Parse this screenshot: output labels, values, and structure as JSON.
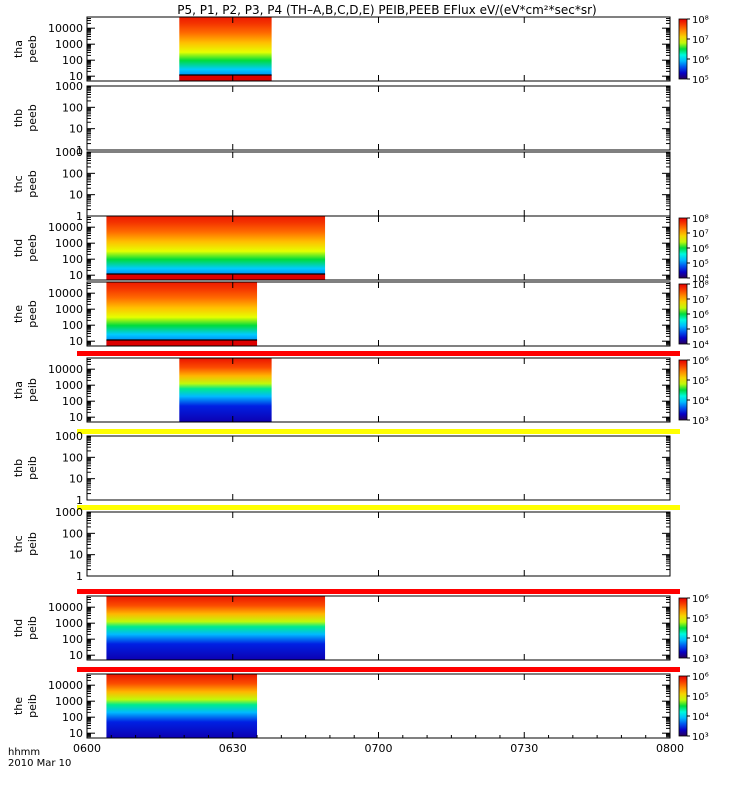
{
  "chart_data": {
    "type": "heatmap",
    "title": "P5, P1, P2, P3, P4 (TH–A,B,C,D,E) PEIB,PEEB EFlux eV/(eV*cm²*sec*sr)",
    "xlabel": "hhmm",
    "date_label": "2010 Mar 10",
    "x_ticks": [
      "0600",
      "0630",
      "0700",
      "0730",
      "0800"
    ],
    "x_range_minutes": [
      0,
      120
    ],
    "ylog": true,
    "panels": [
      {
        "probe": "tha",
        "species": "peeb",
        "ylim": [
          5,
          50000
        ],
        "y_ticks": [
          "10",
          "100",
          "1000",
          "10000"
        ],
        "data_start_min": 19,
        "data_end_min": 38,
        "bottom_band": "red",
        "colorbar": {
          "exp_min": 5,
          "exp_max": 8,
          "labels": [
            "10⁵",
            "10⁶",
            "10⁷",
            "10⁸"
          ]
        }
      },
      {
        "probe": "thb",
        "species": "peeb",
        "ylim": [
          1,
          1000
        ],
        "y_ticks": [
          "1",
          "10",
          "100",
          "1000"
        ],
        "data_start_min": null,
        "data_end_min": null
      },
      {
        "probe": "thc",
        "species": "peeb",
        "ylim": [
          1,
          1000
        ],
        "y_ticks": [
          "1",
          "10",
          "100",
          "1000"
        ],
        "data_start_min": null,
        "data_end_min": null
      },
      {
        "probe": "thd",
        "species": "peeb",
        "ylim": [
          5,
          50000
        ],
        "y_ticks": [
          "10",
          "100",
          "1000",
          "10000"
        ],
        "data_start_min": 4,
        "data_end_min": 49,
        "bottom_band": "red",
        "colorbar": {
          "exp_min": 4,
          "exp_max": 8,
          "labels": [
            "10⁴",
            "10⁵",
            "10⁶",
            "10⁷",
            "10⁸"
          ]
        }
      },
      {
        "probe": "the",
        "species": "peeb",
        "ylim": [
          5,
          50000
        ],
        "y_ticks": [
          "10",
          "100",
          "1000",
          "10000"
        ],
        "data_start_min": 4,
        "data_end_min": 35,
        "bottom_band": "red",
        "colorbar": {
          "exp_min": 4,
          "exp_max": 8,
          "labels": [
            "10⁴",
            "10⁵",
            "10⁶",
            "10⁷",
            "10⁸"
          ]
        }
      },
      {
        "probe": "tha",
        "species": "peib",
        "ylim": [
          5,
          50000
        ],
        "y_ticks": [
          "10",
          "100",
          "1000",
          "10000"
        ],
        "data_start_min": 19,
        "data_end_min": 38,
        "top_strip": "red",
        "colorbar": {
          "exp_min": 3,
          "exp_max": 6,
          "labels": [
            "10³",
            "10⁴",
            "10⁵",
            "10⁶"
          ]
        }
      },
      {
        "probe": "thb",
        "species": "peib",
        "ylim": [
          1,
          1000
        ],
        "y_ticks": [
          "1",
          "10",
          "100",
          "1000"
        ],
        "data_start_min": null,
        "data_end_min": null,
        "top_strip": "yellow"
      },
      {
        "probe": "thc",
        "species": "peib",
        "ylim": [
          1,
          1000
        ],
        "y_ticks": [
          "1",
          "10",
          "100",
          "1000"
        ],
        "data_start_min": null,
        "data_end_min": null,
        "top_strip": "yellow"
      },
      {
        "probe": "thd",
        "species": "peib",
        "ylim": [
          5,
          50000
        ],
        "y_ticks": [
          "10",
          "100",
          "1000",
          "10000"
        ],
        "data_start_min": 4,
        "data_end_min": 49,
        "top_strip": "red",
        "colorbar": {
          "exp_min": 3,
          "exp_max": 6,
          "labels": [
            "10³",
            "10⁴",
            "10⁵",
            "10⁶"
          ]
        }
      },
      {
        "probe": "the",
        "species": "peib",
        "ylim": [
          5,
          50000
        ],
        "y_ticks": [
          "10",
          "100",
          "1000",
          "10000"
        ],
        "data_start_min": 4,
        "data_end_min": 35,
        "top_strip": "red",
        "colorbar": {
          "exp_min": 3,
          "exp_max": 6,
          "labels": [
            "10³",
            "10⁴",
            "10⁵",
            "10⁶"
          ]
        }
      }
    ]
  }
}
